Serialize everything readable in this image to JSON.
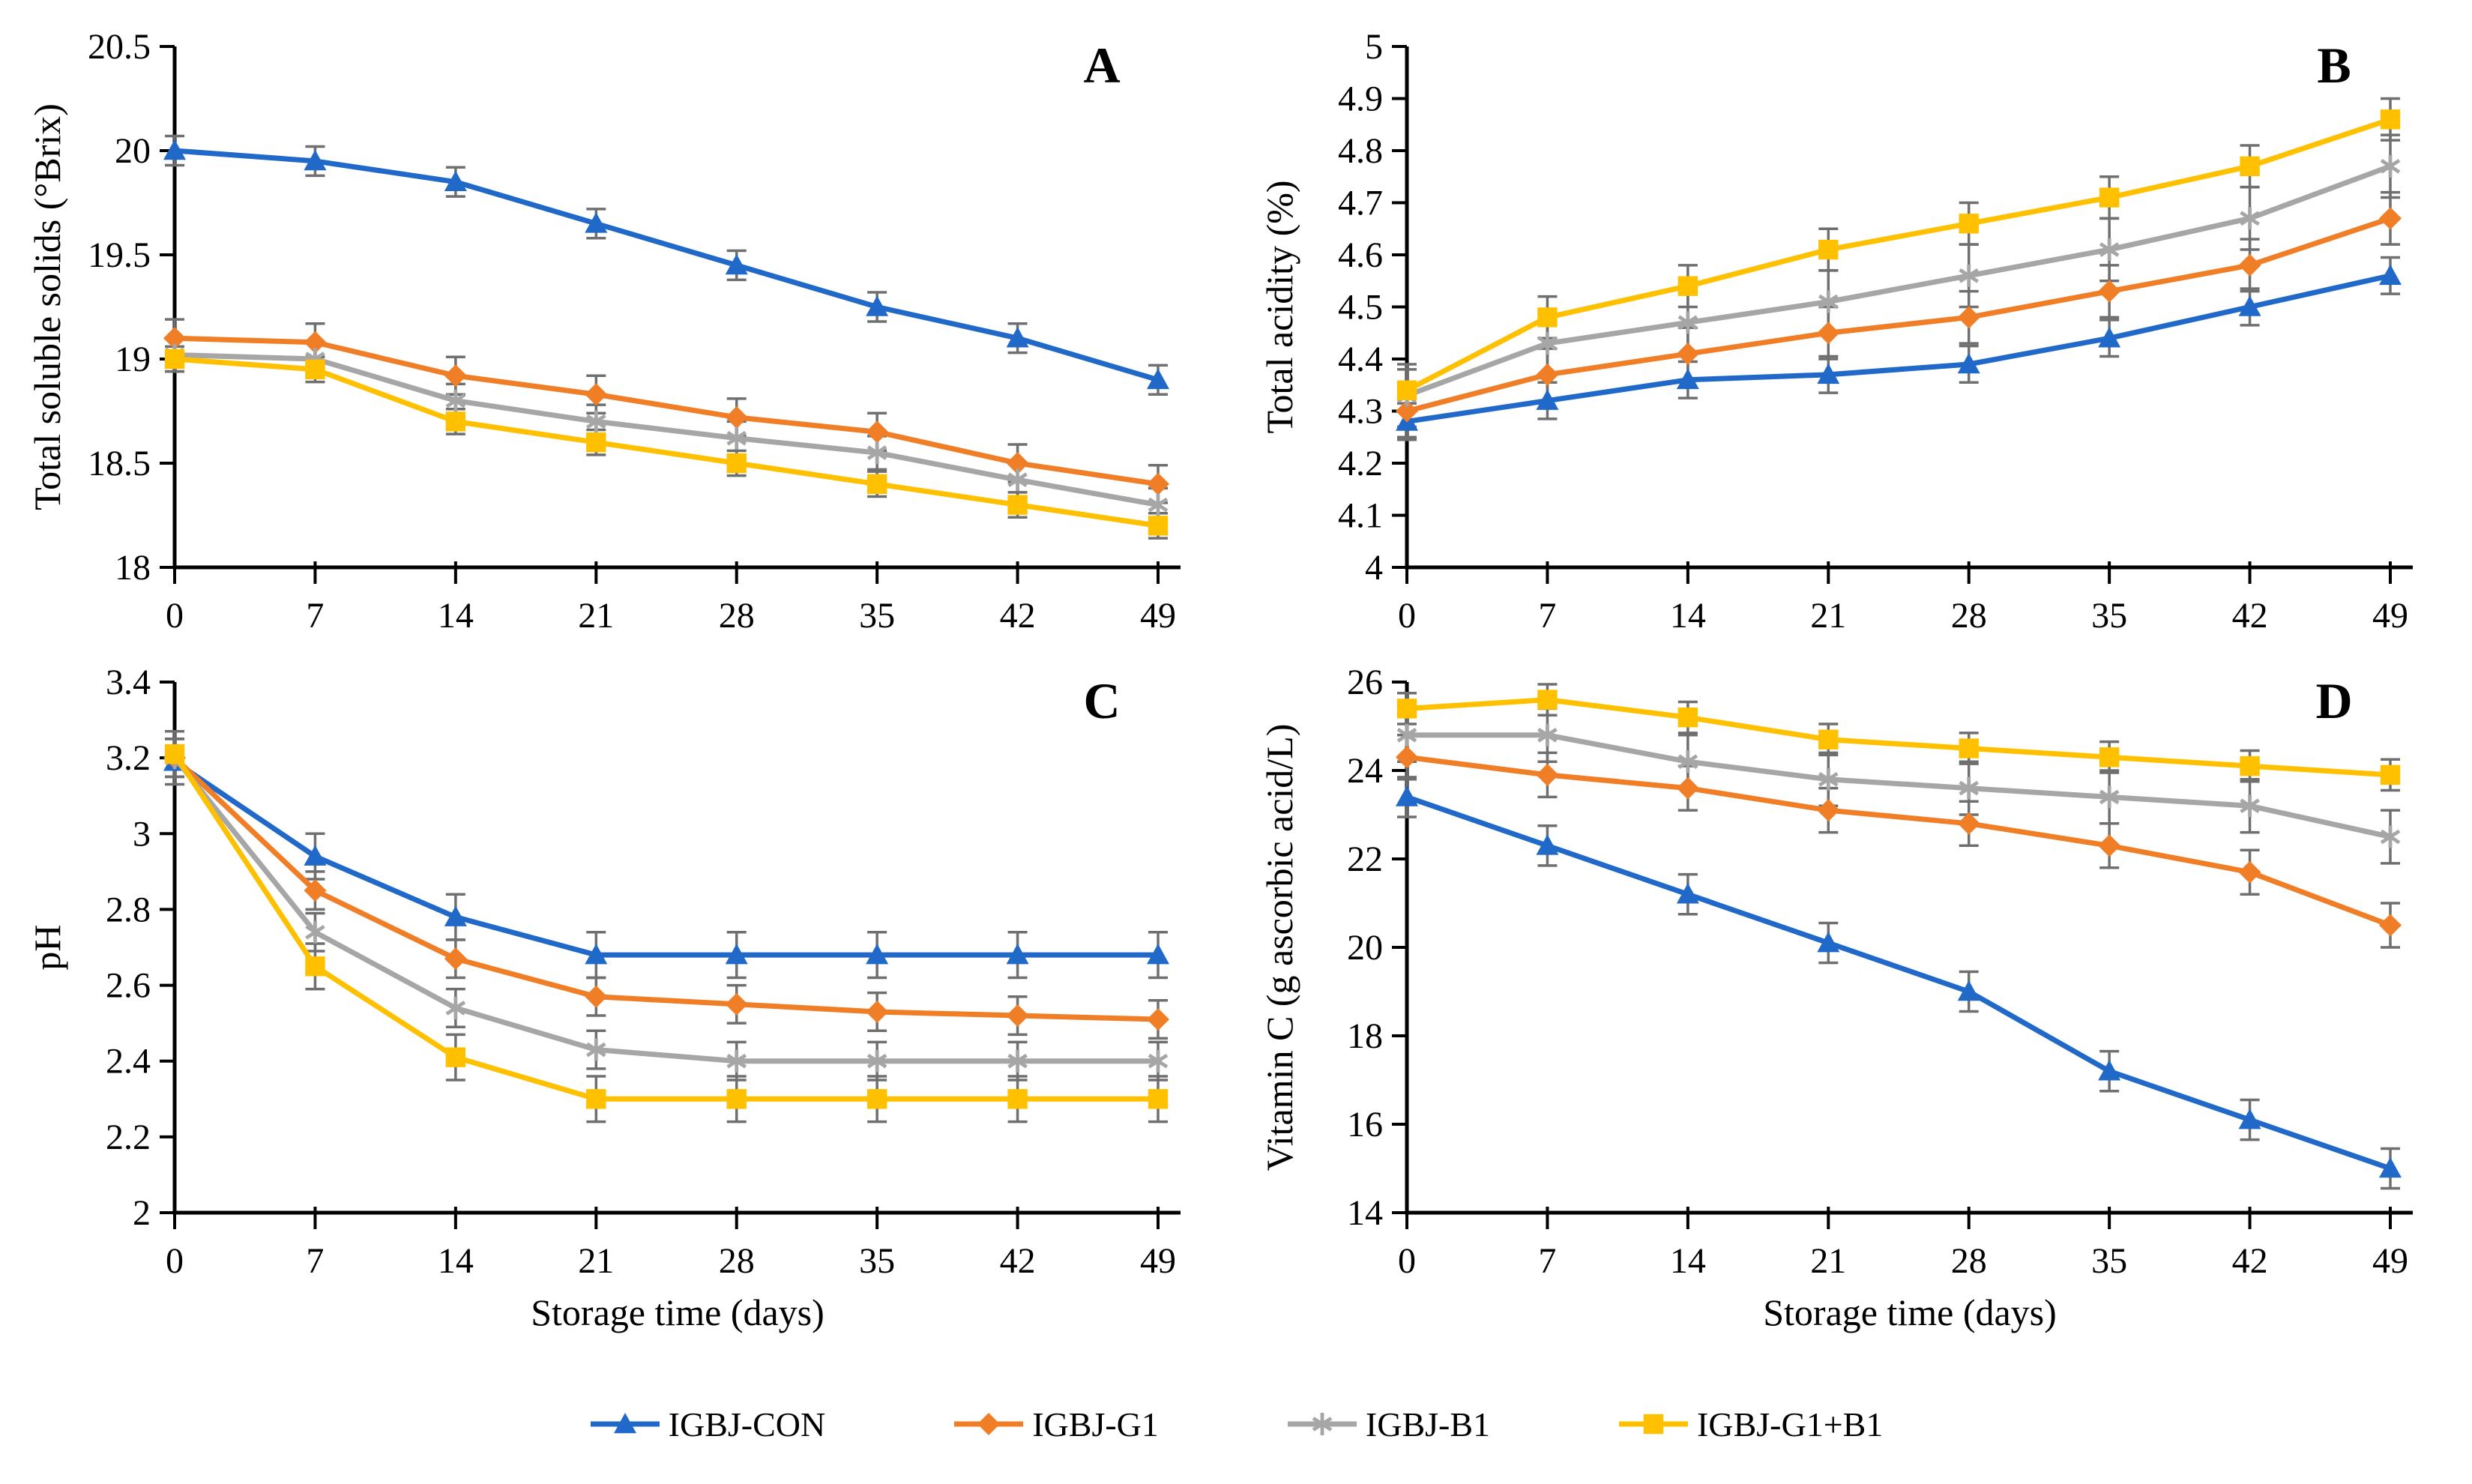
{
  "figure": {
    "background": "#ffffff",
    "axis_color": "#000000",
    "error_bar_color": "#6f6f6f",
    "x_ticks": [
      0,
      7,
      14,
      21,
      28,
      35,
      42,
      49
    ],
    "x_tick_labels": [
      "0",
      "7",
      "14",
      "21",
      "28",
      "35",
      "42",
      "49"
    ],
    "x_axis_label": "Storage time (days)"
  },
  "legend": {
    "items": [
      {
        "label": "IGBJ-CON",
        "marker": "triangle",
        "color": "#2169c8"
      },
      {
        "label": "IGBJ-G1",
        "marker": "diamond",
        "color": "#f07e27"
      },
      {
        "label": "IGBJ-B1",
        "marker": "star",
        "color": "#a6a6a6"
      },
      {
        "label": "IGBJ-G1+B1",
        "marker": "square",
        "color": "#ffc000"
      }
    ]
  },
  "chart_data": [
    {
      "type": "line",
      "panel_label": "A",
      "ylabel": "Total soluble solids (°Brix)",
      "xlabel": "",
      "ylim": [
        18,
        20.5
      ],
      "yticks": [
        18,
        18.5,
        19,
        19.5,
        20,
        20.5
      ],
      "ytick_labels": [
        "18",
        "18.5",
        "19",
        "19.5",
        "20",
        "20.5"
      ],
      "x": [
        0,
        7,
        14,
        21,
        28,
        35,
        42,
        49
      ],
      "grid": false,
      "legend_position": "none",
      "series": [
        {
          "name": "IGBJ-CON",
          "marker": "triangle",
          "color": "#2169c8",
          "err": 0.07,
          "values": [
            20.0,
            19.95,
            19.85,
            19.65,
            19.45,
            19.25,
            19.1,
            18.9
          ]
        },
        {
          "name": "IGBJ-G1",
          "marker": "diamond",
          "color": "#f07e27",
          "err": 0.09,
          "values": [
            19.1,
            19.08,
            18.92,
            18.83,
            18.72,
            18.65,
            18.5,
            18.4
          ]
        },
        {
          "name": "IGBJ-B1",
          "marker": "star",
          "color": "#a6a6a6",
          "err": 0.08,
          "values": [
            19.02,
            19.0,
            18.8,
            18.7,
            18.62,
            18.55,
            18.42,
            18.3
          ]
        },
        {
          "name": "IGBJ-G1+B1",
          "marker": "square",
          "color": "#ffc000",
          "err": 0.06,
          "values": [
            19.0,
            18.95,
            18.7,
            18.6,
            18.5,
            18.4,
            18.3,
            18.2
          ]
        }
      ]
    },
    {
      "type": "line",
      "panel_label": "B",
      "ylabel": "Total acidity (%)",
      "xlabel": "",
      "ylim": [
        4,
        5
      ],
      "yticks": [
        4,
        4.1,
        4.2,
        4.3,
        4.4,
        4.5,
        4.6,
        4.7,
        4.8,
        4.9,
        5
      ],
      "ytick_labels": [
        "4",
        "4.1",
        "4.2",
        "4.3",
        "4.4",
        "4.5",
        "4.6",
        "4.7",
        "4.8",
        "4.9",
        "5"
      ],
      "x": [
        0,
        7,
        14,
        21,
        28,
        35,
        42,
        49
      ],
      "grid": false,
      "legend_position": "none",
      "series": [
        {
          "name": "IGBJ-CON",
          "marker": "triangle",
          "color": "#2169c8",
          "err": 0.035,
          "values": [
            4.28,
            4.32,
            4.36,
            4.37,
            4.39,
            4.44,
            4.5,
            4.56
          ]
        },
        {
          "name": "IGBJ-G1",
          "marker": "diamond",
          "color": "#f07e27",
          "err": 0.05,
          "values": [
            4.3,
            4.37,
            4.41,
            4.45,
            4.48,
            4.53,
            4.58,
            4.67
          ]
        },
        {
          "name": "IGBJ-B1",
          "marker": "star",
          "color": "#a6a6a6",
          "err": 0.06,
          "values": [
            4.33,
            4.43,
            4.47,
            4.51,
            4.56,
            4.61,
            4.67,
            4.77
          ]
        },
        {
          "name": "IGBJ-G1+B1",
          "marker": "square",
          "color": "#ffc000",
          "err": 0.04,
          "values": [
            4.34,
            4.48,
            4.54,
            4.61,
            4.66,
            4.71,
            4.77,
            4.86
          ]
        }
      ]
    },
    {
      "type": "line",
      "panel_label": "C",
      "ylabel": "pH",
      "xlabel": "Storage time (days)",
      "ylim": [
        2,
        3.4
      ],
      "yticks": [
        2,
        2.2,
        2.4,
        2.6,
        2.8,
        3,
        3.2,
        3.4
      ],
      "ytick_labels": [
        "2",
        "2.2",
        "2.4",
        "2.6",
        "2.8",
        "3",
        "3.2",
        "3.4"
      ],
      "x": [
        0,
        7,
        14,
        21,
        28,
        35,
        42,
        49
      ],
      "grid": false,
      "legend_position": "none",
      "series": [
        {
          "name": "IGBJ-CON",
          "marker": "triangle",
          "color": "#2169c8",
          "err": 0.06,
          "values": [
            3.19,
            2.94,
            2.78,
            2.68,
            2.68,
            2.68,
            2.68,
            2.68
          ]
        },
        {
          "name": "IGBJ-G1",
          "marker": "diamond",
          "color": "#f07e27",
          "err": 0.05,
          "values": [
            3.2,
            2.85,
            2.67,
            2.57,
            2.55,
            2.53,
            2.52,
            2.51
          ]
        },
        {
          "name": "IGBJ-B1",
          "marker": "star",
          "color": "#a6a6a6",
          "err": 0.05,
          "values": [
            3.2,
            2.74,
            2.54,
            2.43,
            2.4,
            2.4,
            2.4,
            2.4
          ]
        },
        {
          "name": "IGBJ-G1+B1",
          "marker": "square",
          "color": "#ffc000",
          "err": 0.06,
          "values": [
            3.21,
            2.65,
            2.41,
            2.3,
            2.3,
            2.3,
            2.3,
            2.3
          ]
        }
      ]
    },
    {
      "type": "line",
      "panel_label": "D",
      "ylabel": "Vitamin C (g ascorbic acid/L)",
      "xlabel": "Storage time (days)",
      "ylim": [
        14,
        26
      ],
      "yticks": [
        14,
        16,
        18,
        20,
        22,
        24,
        26
      ],
      "ytick_labels": [
        "14",
        "16",
        "18",
        "20",
        "22",
        "24",
        "26"
      ],
      "x": [
        0,
        7,
        14,
        21,
        28,
        35,
        42,
        49
      ],
      "grid": false,
      "legend_position": "none",
      "series": [
        {
          "name": "IGBJ-CON",
          "marker": "triangle",
          "color": "#2169c8",
          "err": 0.45,
          "values": [
            23.4,
            22.3,
            21.2,
            20.1,
            19.0,
            17.2,
            16.1,
            15.0
          ]
        },
        {
          "name": "IGBJ-G1",
          "marker": "diamond",
          "color": "#f07e27",
          "err": 0.5,
          "values": [
            24.3,
            23.9,
            23.6,
            23.1,
            22.8,
            22.3,
            21.7,
            20.5
          ]
        },
        {
          "name": "IGBJ-B1",
          "marker": "star",
          "color": "#a6a6a6",
          "err": 0.6,
          "values": [
            24.8,
            24.8,
            24.2,
            23.8,
            23.6,
            23.4,
            23.2,
            22.5
          ]
        },
        {
          "name": "IGBJ-G1+B1",
          "marker": "square",
          "color": "#ffc000",
          "err": 0.35,
          "values": [
            25.4,
            25.6,
            25.2,
            24.7,
            24.5,
            24.3,
            24.1,
            23.9
          ]
        }
      ]
    }
  ]
}
